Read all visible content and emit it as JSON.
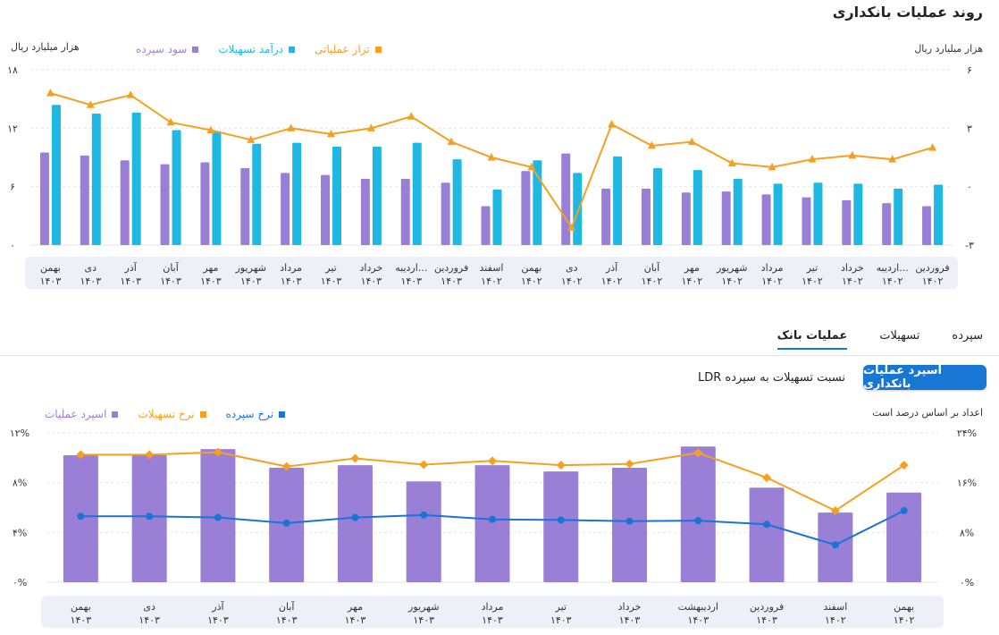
{
  "page_title": "روند عملیات بانکداری",
  "colors": {
    "purple": "#9a7fd6",
    "cyan": "#1fb8e2",
    "orange": "#f5a020",
    "blue": "#1a73d6",
    "band": "#eef0f7"
  },
  "tabs": [
    {
      "label": "سپرده",
      "active": false
    },
    {
      "label": "تسهیلات",
      "active": false
    },
    {
      "label": "عملیات بانک",
      "active": true
    }
  ],
  "buttons": {
    "primary_label": "اسپرد عملیات بانکداری",
    "secondary_label": "نسبت تسهیلات به سپرده LDR"
  },
  "chart_data": [
    {
      "type": "bar",
      "left_unit": "هزار میلیارد ریال",
      "right_unit": "هزار میلیارد ریال",
      "left_ticks": [
        "۰",
        "۶",
        "۱۲",
        "۱۸"
      ],
      "right_ticks": [
        "-۳",
        "۰",
        "۳",
        "۶"
      ],
      "ylim_left": [
        0,
        18
      ],
      "ylim_right": [
        -3,
        6
      ],
      "grid": true,
      "legend_position": "top-left",
      "categories": [
        {
          "month": "فروردین",
          "year": "۱۴۰۲"
        },
        {
          "month": "اردیبه...",
          "year": "۱۴۰۲"
        },
        {
          "month": "خرداد",
          "year": "۱۴۰۲"
        },
        {
          "month": "تیر",
          "year": "۱۴۰۲"
        },
        {
          "month": "مرداد",
          "year": "۱۴۰۲"
        },
        {
          "month": "شهریور",
          "year": "۱۴۰۲"
        },
        {
          "month": "مهر",
          "year": "۱۴۰۲"
        },
        {
          "month": "آبان",
          "year": "۱۴۰۲"
        },
        {
          "month": "آذر",
          "year": "۱۴۰۲"
        },
        {
          "month": "دی",
          "year": "۱۴۰۲"
        },
        {
          "month": "بهمن",
          "year": "۱۴۰۲"
        },
        {
          "month": "اسفند",
          "year": "۱۴۰۲"
        },
        {
          "month": "فروردین",
          "year": "۱۴۰۳"
        },
        {
          "month": "اردیبه...",
          "year": "۱۴۰۳"
        },
        {
          "month": "خرداد",
          "year": "۱۴۰۳"
        },
        {
          "month": "تیر",
          "year": "۱۴۰۳"
        },
        {
          "month": "مرداد",
          "year": "۱۴۰۳"
        },
        {
          "month": "شهریور",
          "year": "۱۴۰۳"
        },
        {
          "month": "مهر",
          "year": "۱۴۰۳"
        },
        {
          "month": "آبان",
          "year": "۱۴۰۳"
        },
        {
          "month": "آذر",
          "year": "۱۴۰۳"
        },
        {
          "month": "دی",
          "year": "۱۴۰۳"
        },
        {
          "month": "بهمن",
          "year": "۱۴۰۳"
        }
      ],
      "series": [
        {
          "name": "سود سپرده",
          "kind": "bar",
          "axis": "left",
          "color": "#9a7fd6",
          "values": [
            4.0,
            4.3,
            4.6,
            4.9,
            5.2,
            5.5,
            5.4,
            5.8,
            5.8,
            9.4,
            7.6,
            4.0,
            6.4,
            6.8,
            6.8,
            7.2,
            7.4,
            7.9,
            8.5,
            8.3,
            8.7,
            9.2,
            9.5
          ]
        },
        {
          "name": "درآمد تسهیلات",
          "kind": "bar",
          "axis": "left",
          "color": "#1fb8e2",
          "values": [
            6.2,
            5.8,
            6.3,
            6.4,
            6.3,
            6.8,
            7.7,
            7.9,
            9.1,
            7.4,
            8.7,
            5.7,
            8.8,
            10.5,
            10.1,
            10.1,
            10.5,
            10.4,
            11.7,
            11.8,
            13.6,
            13.5,
            14.4
          ]
        },
        {
          "name": "تراز عملیاتی",
          "kind": "line",
          "axis": "right",
          "color": "#f5a020",
          "values": [
            2.0,
            1.4,
            1.6,
            1.4,
            1.0,
            1.2,
            2.3,
            2.1,
            3.2,
            -2.1,
            1.0,
            1.5,
            2.3,
            3.6,
            3.0,
            2.7,
            3.0,
            2.4,
            2.9,
            3.3,
            4.7,
            4.2,
            4.8
          ]
        }
      ]
    },
    {
      "type": "bar",
      "note": "اعداد بر اساس درصد است",
      "left_ticks": [
        "۰%",
        "۴%",
        "۸%",
        "۱۲%"
      ],
      "right_ticks": [
        "۰%",
        "۸%",
        "۱۶%",
        "۲۴%"
      ],
      "ylim_left": [
        0,
        12
      ],
      "ylim_right": [
        0,
        24
      ],
      "grid": true,
      "legend_position": "top-left",
      "categories": [
        {
          "month": "بهمن",
          "year": "۱۴۰۲"
        },
        {
          "month": "اسفند",
          "year": "۱۴۰۲"
        },
        {
          "month": "فروردین",
          "year": "۱۴۰۳"
        },
        {
          "month": "اردیبهشت",
          "year": "۱۴۰۳"
        },
        {
          "month": "خرداد",
          "year": "۱۴۰۳"
        },
        {
          "month": "تیر",
          "year": "۱۴۰۳"
        },
        {
          "month": "مرداد",
          "year": "۱۴۰۳"
        },
        {
          "month": "شهریور",
          "year": "۱۴۰۳"
        },
        {
          "month": "مهر",
          "year": "۱۴۰۳"
        },
        {
          "month": "آبان",
          "year": "۱۴۰۳"
        },
        {
          "month": "آذر",
          "year": "۱۴۰۳"
        },
        {
          "month": "دی",
          "year": "۱۴۰۳"
        },
        {
          "month": "بهمن",
          "year": "۱۴۰۳"
        }
      ],
      "series": [
        {
          "name": "اسپرد عملیات",
          "kind": "bar",
          "axis": "left",
          "color": "#9a7fd6",
          "values": [
            7.2,
            5.6,
            7.6,
            10.9,
            9.2,
            8.9,
            9.4,
            8.1,
            9.4,
            9.2,
            10.7,
            10.2,
            10.2
          ]
        },
        {
          "name": "نرخ تسهیلات",
          "kind": "line",
          "axis": "right",
          "color": "#f5a020",
          "values": [
            18.8,
            11.5,
            16.8,
            20.8,
            19.0,
            18.8,
            19.5,
            18.9,
            19.9,
            18.6,
            20.9,
            20.5,
            20.5
          ]
        },
        {
          "name": "نرخ سپرده",
          "kind": "line",
          "axis": "right",
          "color": "#1a73d6",
          "values": [
            11.5,
            6.0,
            9.3,
            9.9,
            9.8,
            10.0,
            10.1,
            10.8,
            10.4,
            9.5,
            10.4,
            10.6,
            10.6
          ]
        }
      ]
    }
  ]
}
